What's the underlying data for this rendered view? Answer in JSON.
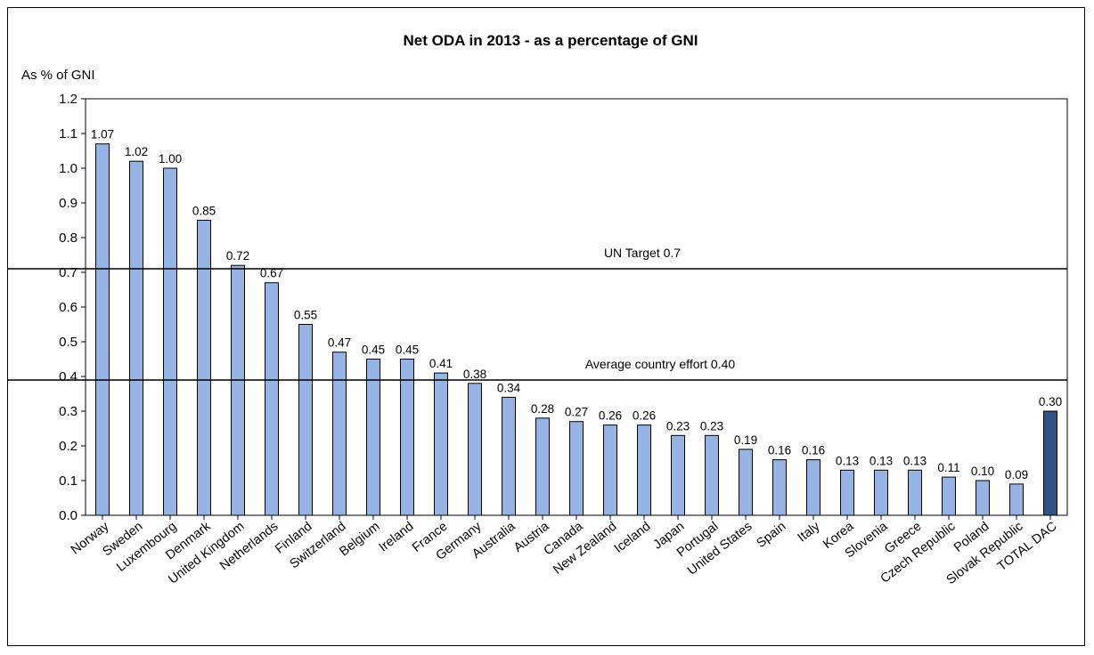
{
  "chart_data": {
    "type": "bar",
    "title": "Net ODA in 2013 - as a percentage of GNI",
    "ylabel": "As % of GNI",
    "xlabel": "",
    "ylim": [
      0,
      1.2
    ],
    "yticks": [
      "0.0",
      "0.1",
      "0.2",
      "0.3",
      "0.4",
      "0.5",
      "0.6",
      "0.7",
      "0.8",
      "0.9",
      "1.0",
      "1.1",
      "1.2"
    ],
    "categories": [
      "Norway",
      "Sweden",
      "Luxembourg",
      "Denmark",
      "United Kingdom",
      "Netherlands",
      "Finland",
      "Switzerland",
      "Belgium",
      "Ireland",
      "France",
      "Germany",
      "Australia",
      "Austria",
      "Canada",
      "New Zealand",
      "Iceland",
      "Japan",
      "Portugal",
      "United States",
      "Spain",
      "Italy",
      "Korea",
      "Slovenia",
      "Greece",
      "Czech Republic",
      "Poland",
      "Slovak Republic",
      "TOTAL DAC"
    ],
    "values": [
      1.07,
      1.02,
      1.0,
      0.85,
      0.72,
      0.67,
      0.55,
      0.47,
      0.45,
      0.45,
      0.41,
      0.38,
      0.34,
      0.28,
      0.27,
      0.26,
      0.26,
      0.23,
      0.23,
      0.19,
      0.16,
      0.16,
      0.13,
      0.13,
      0.13,
      0.11,
      0.1,
      0.09,
      0.3
    ],
    "data_labels": [
      "1.07",
      "1.02",
      "1.00",
      "0.85",
      "0.72",
      "0.67",
      "0.55",
      "0.47",
      "0.45",
      "0.45",
      "0.41",
      "0.38",
      "0.34",
      "0.28",
      "0.27",
      "0.26",
      "0.26",
      "0.23",
      "0.23",
      "0.19",
      "0.16",
      "0.16",
      "0.13",
      "0.13",
      "0.13",
      "0.11",
      "0.10",
      "0.09",
      "0.30"
    ],
    "highlight_category": "TOTAL DAC",
    "bar_color": "#95B3E3",
    "highlight_color": "#2F5587",
    "reference_lines": [
      {
        "label": "UN Target 0.7",
        "value": 0.7
      },
      {
        "label": "Average country effort 0.40",
        "value": 0.4
      }
    ],
    "grid": false,
    "legend": "none"
  }
}
